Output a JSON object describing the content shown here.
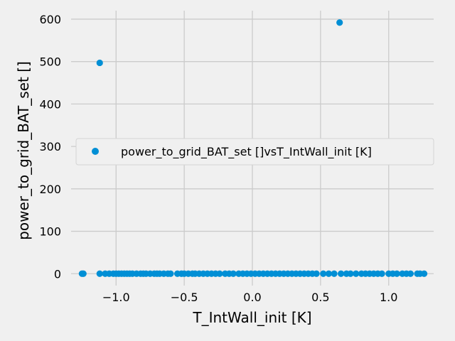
{
  "chart_data": {
    "type": "scatter",
    "xlabel": "T_IntWall_init [K]",
    "ylabel": "power_to_grid_BAT_set []",
    "xlim": [
      -1.33,
      1.33
    ],
    "ylim": [
      -28,
      620
    ],
    "x_ticks": [
      -1.0,
      -0.5,
      0.0,
      0.5,
      1.0
    ],
    "x_tick_labels": [
      "−1.0",
      "−0.5",
      "0.0",
      "0.5",
      "1.0"
    ],
    "y_ticks": [
      0,
      100,
      200,
      300,
      400,
      500,
      600
    ],
    "y_tick_labels": [
      "0",
      "100",
      "200",
      "300",
      "400",
      "500",
      "600"
    ],
    "grid": true,
    "legend": {
      "placement": "center-right",
      "entries": [
        "power_to_grid_BAT_set []vsT_IntWall_init [K]"
      ]
    },
    "colors": {
      "marker": "#008fd5",
      "background": "#f0f0f0",
      "grid": "#cbcbcb"
    },
    "series": [
      {
        "name": "power_to_grid_BAT_set []vsT_IntWall_init [K]",
        "points": [
          [
            -1.25,
            0
          ],
          [
            -1.24,
            0
          ],
          [
            -1.12,
            497
          ],
          [
            0.64,
            592
          ],
          [
            -1.12,
            0
          ],
          [
            -1.08,
            0
          ],
          [
            -1.05,
            0
          ],
          [
            -1.02,
            0
          ],
          [
            -1.0,
            0
          ],
          [
            -0.98,
            0
          ],
          [
            -0.96,
            0
          ],
          [
            -0.94,
            0
          ],
          [
            -0.92,
            0
          ],
          [
            -0.9,
            0
          ],
          [
            -0.88,
            0
          ],
          [
            -0.85,
            0
          ],
          [
            -0.82,
            0
          ],
          [
            -0.8,
            0
          ],
          [
            -0.78,
            0
          ],
          [
            -0.75,
            0
          ],
          [
            -0.72,
            0
          ],
          [
            -0.7,
            0
          ],
          [
            -0.68,
            0
          ],
          [
            -0.65,
            0
          ],
          [
            -0.62,
            0
          ],
          [
            -0.6,
            0
          ],
          [
            -0.55,
            0
          ],
          [
            -0.52,
            0
          ],
          [
            -0.5,
            0
          ],
          [
            -0.47,
            0
          ],
          [
            -0.44,
            0
          ],
          [
            -0.42,
            0
          ],
          [
            -0.39,
            0
          ],
          [
            -0.36,
            0
          ],
          [
            -0.33,
            0
          ],
          [
            -0.3,
            0
          ],
          [
            -0.27,
            0
          ],
          [
            -0.24,
            0
          ],
          [
            -0.2,
            0
          ],
          [
            -0.17,
            0
          ],
          [
            -0.14,
            0
          ],
          [
            -0.1,
            0
          ],
          [
            -0.07,
            0
          ],
          [
            -0.04,
            0
          ],
          [
            -0.01,
            0
          ],
          [
            0.02,
            0
          ],
          [
            0.05,
            0
          ],
          [
            0.08,
            0
          ],
          [
            0.11,
            0
          ],
          [
            0.14,
            0
          ],
          [
            0.17,
            0
          ],
          [
            0.2,
            0
          ],
          [
            0.23,
            0
          ],
          [
            0.26,
            0
          ],
          [
            0.29,
            0
          ],
          [
            0.32,
            0
          ],
          [
            0.35,
            0
          ],
          [
            0.38,
            0
          ],
          [
            0.41,
            0
          ],
          [
            0.44,
            0
          ],
          [
            0.47,
            0
          ],
          [
            0.52,
            0
          ],
          [
            0.56,
            0
          ],
          [
            0.6,
            0
          ],
          [
            0.65,
            0
          ],
          [
            0.69,
            0
          ],
          [
            0.72,
            0
          ],
          [
            0.76,
            0
          ],
          [
            0.8,
            0
          ],
          [
            0.83,
            0
          ],
          [
            0.86,
            0
          ],
          [
            0.89,
            0
          ],
          [
            0.92,
            0
          ],
          [
            0.95,
            0
          ],
          [
            1.0,
            0
          ],
          [
            1.03,
            0
          ],
          [
            1.06,
            0
          ],
          [
            1.1,
            0
          ],
          [
            1.13,
            0
          ],
          [
            1.16,
            0
          ],
          [
            1.21,
            0
          ],
          [
            1.23,
            0
          ],
          [
            1.26,
            0
          ]
        ]
      }
    ]
  }
}
